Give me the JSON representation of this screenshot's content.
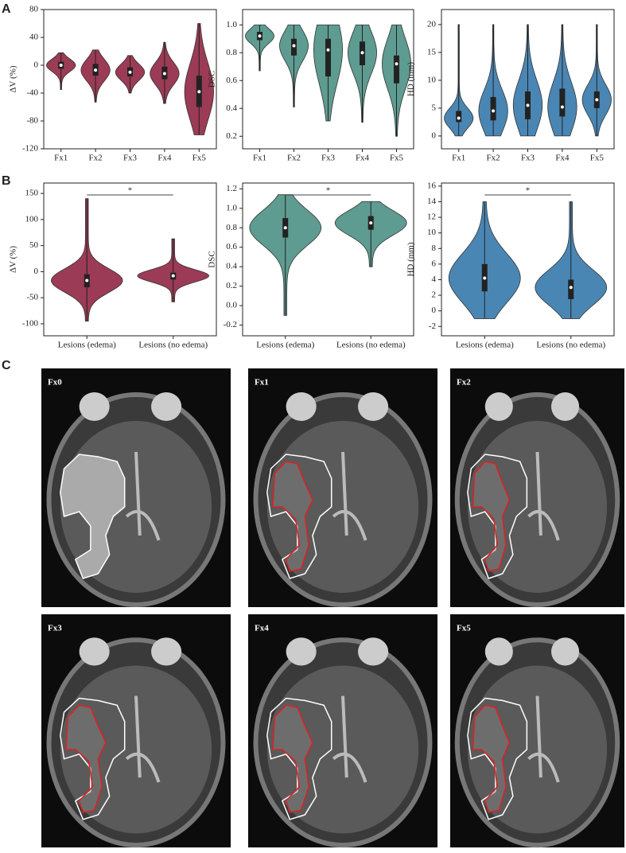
{
  "panel_labels": [
    "A",
    "B",
    "C"
  ],
  "chart_data": [
    {
      "type": "violin",
      "y_label": "ΔV (%)",
      "color": "#9b3b55",
      "categories": [
        "Fx1",
        "Fx2",
        "Fx3",
        "Fx4",
        "Fx5"
      ],
      "ylim": [
        -120,
        80
      ],
      "yticks": [
        -120,
        -80,
        -40,
        0,
        40,
        80
      ],
      "violins": [
        {
          "min": -35,
          "q1": -5,
          "median": 0,
          "q3": 5,
          "max": 18
        },
        {
          "min": -53,
          "q1": -15,
          "median": -7,
          "q3": 2,
          "max": 22
        },
        {
          "min": -40,
          "q1": -16,
          "median": -10,
          "q3": -3,
          "max": 14
        },
        {
          "min": -55,
          "q1": -20,
          "median": -12,
          "q3": -2,
          "max": 33
        },
        {
          "min": -100,
          "q1": -60,
          "median": -38,
          "q3": -15,
          "max": 60
        }
      ]
    },
    {
      "type": "violin",
      "y_label": "DSC",
      "color": "#5e9b90",
      "categories": [
        "Fx1",
        "Fx2",
        "Fx3",
        "Fx4",
        "Fx5"
      ],
      "ylim": [
        0.11,
        1.11
      ],
      "yticks": [
        0.2,
        0.4,
        0.6,
        0.8,
        {
          "value": 1,
          "label": "1.0"
        }
      ],
      "violins": [
        {
          "min": 0.67,
          "q1": 0.89,
          "median": 0.92,
          "q3": 0.95,
          "max": 1
        },
        {
          "min": 0.41,
          "q1": 0.78,
          "median": 0.85,
          "q3": 0.9,
          "max": 1
        },
        {
          "min": 0.31,
          "q1": 0.63,
          "median": 0.82,
          "q3": 0.9,
          "max": 1
        },
        {
          "min": 0.3,
          "q1": 0.71,
          "median": 0.8,
          "q3": 0.88,
          "max": 1
        },
        {
          "min": 0.2,
          "q1": 0.58,
          "median": 0.72,
          "q3": 0.78,
          "max": 1
        }
      ]
    },
    {
      "type": "violin",
      "y_label": "HD (mm)",
      "color": "#4a86b4",
      "categories": [
        "Fx1",
        "Fx2",
        "Fx3",
        "Fx4",
        "Fx5"
      ],
      "ylim": [
        -2.3,
        22.7
      ],
      "yticks": [
        0,
        5,
        10,
        15,
        20
      ],
      "violins": [
        {
          "min": 0,
          "q1": 2.5,
          "median": 3.2,
          "q3": 4.5,
          "max": 20
        },
        {
          "min": 0,
          "q1": 2.8,
          "median": 4.5,
          "q3": 7,
          "max": 20
        },
        {
          "min": 0,
          "q1": 3,
          "median": 5.5,
          "q3": 8,
          "max": 20
        },
        {
          "min": 0,
          "q1": 3.5,
          "median": 5.2,
          "q3": 8.5,
          "max": 20
        },
        {
          "min": 0,
          "q1": 5,
          "median": 6.5,
          "q3": 8,
          "max": 20
        }
      ]
    },
    {
      "type": "violin",
      "y_label": "ΔV (%)",
      "color": "#9b3b55",
      "categories": [
        "Lesions (edema)",
        "Lesions (no edema)"
      ],
      "ylim": [
        -123,
        170
      ],
      "yticks": [
        -100,
        -50,
        0,
        50,
        100,
        150
      ],
      "annotation": "*",
      "violins": [
        {
          "min": -95,
          "q1": -30,
          "median": -17,
          "q3": -5,
          "max": 140
        },
        {
          "min": -58,
          "q1": -15,
          "median": -8,
          "q3": -2,
          "max": 63
        }
      ]
    },
    {
      "type": "violin",
      "y_label": "DSC",
      "color": "#5e9b90",
      "categories": [
        "Lesions (edema)",
        "Lesions (no edema)"
      ],
      "ylim": [
        -0.31,
        1.26
      ],
      "yticks": [
        -0.2,
        {
          "value": 0,
          "label": "0.0"
        },
        0.2,
        0.4,
        0.6,
        0.8,
        {
          "value": 1,
          "label": "1.0"
        },
        1.2
      ],
      "annotation": "*",
      "violins": [
        {
          "min": -0.1,
          "q1": 0.7,
          "median": 0.8,
          "q3": 0.9,
          "max": 1.14
        },
        {
          "min": 0.4,
          "q1": 0.78,
          "median": 0.85,
          "q3": 0.92,
          "max": 1.07
        }
      ]
    },
    {
      "type": "violin",
      "y_label": "HD (mm)",
      "color": "#4a86b4",
      "categories": [
        "Lesions (edema)",
        "Lesions (no edema)"
      ],
      "ylim": [
        -3.2,
        16.4
      ],
      "yticks": [
        -2,
        0,
        2,
        4,
        6,
        8,
        10,
        12,
        14,
        16
      ],
      "annotation": "*",
      "violins": [
        {
          "min": -1,
          "q1": 2.5,
          "median": 4.2,
          "q3": 6,
          "max": 14
        },
        {
          "min": -1,
          "q1": 1.5,
          "median": 3,
          "q3": 4,
          "max": 14
        }
      ]
    }
  ],
  "images": [
    {
      "label": "Fx0"
    },
    {
      "label": "Fx1"
    },
    {
      "label": "Fx2"
    },
    {
      "label": "Fx3"
    },
    {
      "label": "Fx4"
    },
    {
      "label": "Fx5"
    }
  ]
}
